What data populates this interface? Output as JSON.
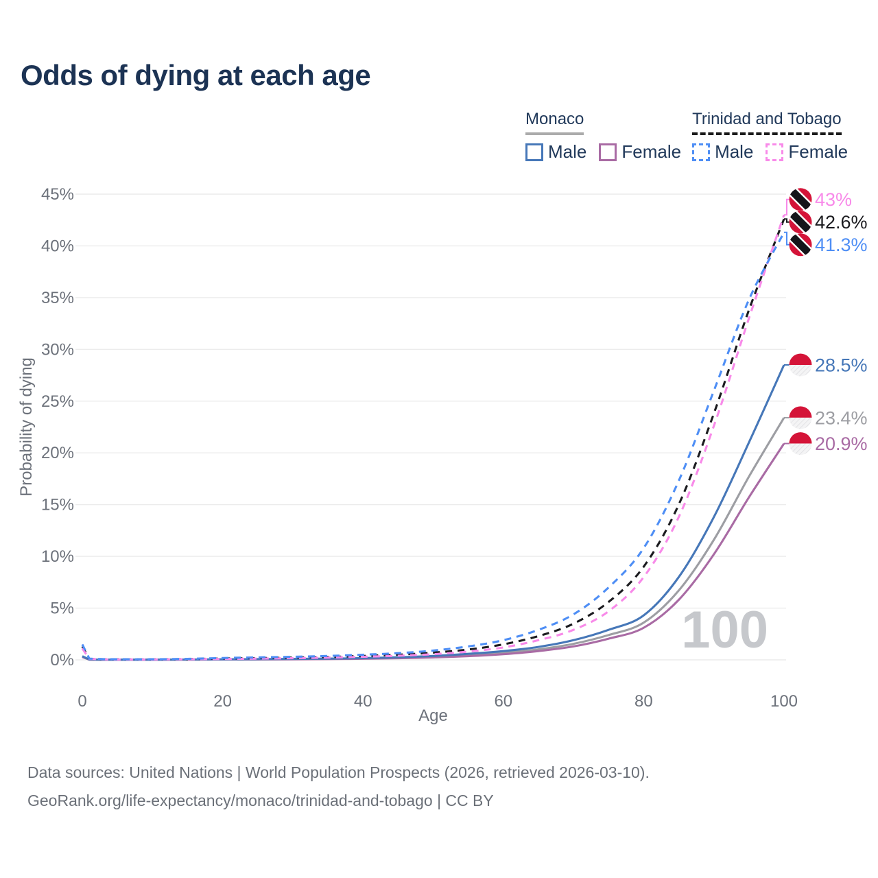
{
  "title": "Odds of dying at each age",
  "legend": {
    "groups": [
      {
        "label": "Monaco",
        "line_style": "solid",
        "underline_color": "#ababab",
        "items": [
          {
            "label": "Male",
            "color": "#4677b8"
          },
          {
            "label": "Female",
            "color": "#a96ba4"
          }
        ]
      },
      {
        "label": "Trinidad and Tobago",
        "line_style": "dashed",
        "underline_color": "#1a1a1a",
        "items": [
          {
            "label": "Male",
            "color": "#4e8ef5"
          },
          {
            "label": "Female",
            "color": "#f88ae9"
          }
        ]
      }
    ]
  },
  "watermark": "100",
  "footer": {
    "line1": "Data sources: United Nations | World Population Prospects (2026, retrieved 2026-03-10).",
    "line2": "GeoRank.org/life-expectancy/monaco/trinidad-and-tobago | CC BY"
  },
  "chart_data": {
    "type": "line",
    "title": "Odds of dying at each age",
    "xlabel": "Age",
    "ylabel": "Probability of dying",
    "xlim": [
      0,
      100
    ],
    "ylim": [
      0,
      45
    ],
    "x_ticks": [
      0,
      20,
      40,
      60,
      80,
      100
    ],
    "y_ticks": [
      0,
      5,
      10,
      15,
      20,
      25,
      30,
      35,
      40,
      45
    ],
    "y_tick_suffix": "%",
    "grid": "horizontal",
    "legend_position": "top-right",
    "ages": [
      0,
      1,
      3,
      5,
      10,
      15,
      20,
      25,
      30,
      35,
      40,
      45,
      50,
      55,
      60,
      65,
      70,
      75,
      80,
      85,
      90,
      95,
      100
    ],
    "series": [
      {
        "id": "monaco-both",
        "country": "Monaco",
        "sex": "Both",
        "style": "solid",
        "color": "#9d9ea3",
        "flag": "monaco",
        "end_label": "23.4%",
        "values": [
          0.3,
          0.025,
          0.018,
          0.015,
          0.015,
          0.025,
          0.04,
          0.055,
          0.07,
          0.1,
          0.14,
          0.2,
          0.3,
          0.45,
          0.68,
          1.02,
          1.55,
          2.4,
          3.6,
          6.7,
          11.6,
          17.7,
          23.4
        ]
      },
      {
        "id": "monaco-female",
        "country": "Monaco",
        "sex": "Female",
        "style": "solid",
        "color": "#a96ba4",
        "flag": "monaco",
        "end_label": "20.9%",
        "values": [
          0.28,
          0.02,
          0.015,
          0.012,
          0.012,
          0.02,
          0.03,
          0.04,
          0.055,
          0.08,
          0.11,
          0.16,
          0.24,
          0.36,
          0.55,
          0.85,
          1.3,
          2.05,
          3.1,
          5.8,
          10.2,
          15.7,
          20.9
        ]
      },
      {
        "id": "monaco-male",
        "country": "Monaco",
        "sex": "Male",
        "style": "solid",
        "color": "#4677b8",
        "flag": "monaco",
        "end_label": "28.5%",
        "values": [
          0.35,
          0.03,
          0.02,
          0.02,
          0.02,
          0.03,
          0.05,
          0.07,
          0.09,
          0.12,
          0.17,
          0.25,
          0.38,
          0.58,
          0.85,
          1.25,
          1.9,
          2.9,
          4.3,
          8.0,
          13.8,
          21.0,
          28.5
        ]
      },
      {
        "id": "trinidad-and-tobago-both",
        "country": "Trinidad and Tobago",
        "sex": "Both",
        "style": "dashed",
        "color": "#1b1b1f",
        "flag": "trinidad-and-tobago",
        "end_label": "42.6%",
        "values": [
          1.3,
          0.1,
          0.06,
          0.05,
          0.05,
          0.08,
          0.13,
          0.17,
          0.22,
          0.28,
          0.38,
          0.5,
          0.7,
          1.0,
          1.5,
          2.3,
          3.5,
          5.6,
          9.0,
          15.0,
          23.8,
          33.8,
          42.6
        ]
      },
      {
        "id": "trinidad-and-tobago-female",
        "country": "Trinidad and Tobago",
        "sex": "Female",
        "style": "dashed",
        "color": "#f88ae9",
        "flag": "trinidad-and-tobago",
        "end_label": "43%",
        "values": [
          1.1,
          0.09,
          0.05,
          0.04,
          0.04,
          0.06,
          0.09,
          0.12,
          0.16,
          0.22,
          0.3,
          0.4,
          0.55,
          0.8,
          1.2,
          1.9,
          2.9,
          4.7,
          8.0,
          13.8,
          22.6,
          33.0,
          43.0
        ]
      },
      {
        "id": "trinidad-and-tobago-male",
        "country": "Trinidad and Tobago",
        "sex": "Male",
        "style": "dashed",
        "color": "#4e8ef5",
        "flag": "trinidad-and-tobago",
        "end_label": "41.3%",
        "values": [
          1.5,
          0.12,
          0.07,
          0.06,
          0.06,
          0.1,
          0.18,
          0.24,
          0.3,
          0.38,
          0.5,
          0.65,
          0.9,
          1.3,
          1.9,
          2.9,
          4.4,
          7.0,
          10.8,
          17.3,
          26.0,
          34.8,
          41.3
        ]
      }
    ]
  }
}
